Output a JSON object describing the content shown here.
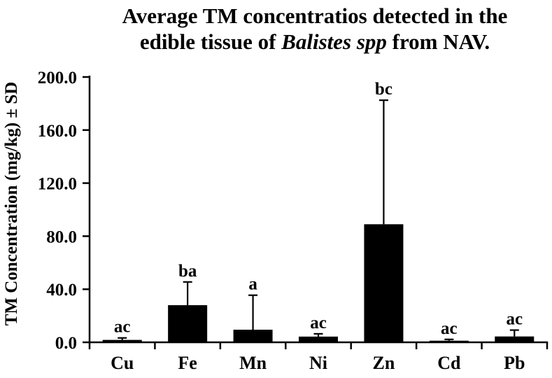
{
  "chart_data": {
    "type": "bar",
    "title": {
      "line1": "Average TM concentratios detected in the",
      "line2_prefix": "edible tissue of ",
      "line2_italic": "Balistes spp",
      "line2_suffix": " from NAV."
    },
    "ylabel": "TM Concentration (mg/kg) ± SD",
    "xlabel": "",
    "ylim": [
      0,
      200
    ],
    "ytick_interval": 40,
    "ytick_labels": [
      "0.0",
      "40.0",
      "80.0",
      "120.0",
      "160.0",
      "200.0"
    ],
    "categories": [
      "Cu",
      "Fe",
      "Mn",
      "Ni",
      "Zn",
      "Cd",
      "Pb"
    ],
    "values": [
      1.8,
      28.0,
      9.5,
      4.3,
      89.0,
      1.2,
      4.4
    ],
    "sd_upper": [
      1.5,
      17.5,
      26.0,
      2.1,
      93.5,
      1.0,
      4.8
    ],
    "sig_labels": [
      "ac",
      "ba",
      "a",
      "ac",
      "bc",
      "ac",
      "ac"
    ],
    "bar_color": "#000000",
    "axis_color": "#000000",
    "background": "#ffffff",
    "grid": false,
    "legend": false,
    "error_bars": "upper-only"
  }
}
